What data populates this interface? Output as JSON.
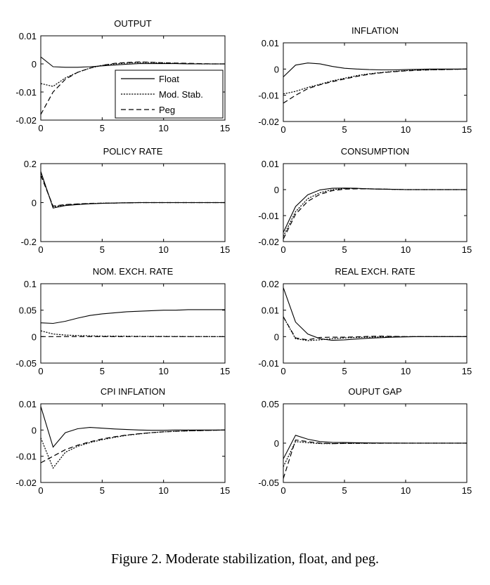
{
  "series_styles": [
    {
      "name": "Float",
      "dash": ""
    },
    {
      "name": "Mod. Stab.",
      "dash": "2.2,1.6"
    },
    {
      "name": "Peg",
      "dash": "7,4"
    }
  ],
  "chart_data": [
    {
      "type": "line",
      "title": "OUTPUT",
      "xlim": [
        0,
        15
      ],
      "ylim": [
        -0.02,
        0.01
      ],
      "x": [
        0,
        1,
        2,
        3,
        4,
        5,
        6,
        7,
        8,
        9,
        10,
        11,
        12,
        13,
        14,
        15
      ],
      "xticks": [
        0,
        5,
        10,
        15
      ],
      "xtick_labels": [
        "0",
        "5",
        "10",
        "15"
      ],
      "yticks": [
        -0.02,
        -0.01,
        0,
        0.01
      ],
      "ytick_labels": [
        "-0.02",
        "-0.01",
        "0",
        "0.01"
      ],
      "legend": [
        "Float",
        "Mod. Stab.",
        "Peg"
      ],
      "series": [
        {
          "name": "Float",
          "values": [
            0.0025,
            -0.001,
            -0.0012,
            -0.0012,
            -0.001,
            -0.0007,
            -0.0004,
            -0.0001,
            0.0001,
            0.0001,
            0.0001,
            0.0001,
            0.0,
            0.0,
            0.0,
            0.0
          ]
        },
        {
          "name": "Mod. Stab.",
          "values": [
            -0.007,
            -0.008,
            -0.005,
            -0.003,
            -0.0015,
            -0.0005,
            0.0,
            0.0003,
            0.0005,
            0.0005,
            0.0003,
            0.0002,
            0.0001,
            0.0,
            0.0,
            0.0
          ]
        },
        {
          "name": "Peg",
          "values": [
            -0.018,
            -0.01,
            -0.0055,
            -0.003,
            -0.0015,
            -0.0005,
            0.0002,
            0.0005,
            0.0007,
            0.0006,
            0.0004,
            0.0003,
            0.0002,
            0.0001,
            0.0,
            0.0
          ]
        }
      ]
    },
    {
      "type": "line",
      "title": "INFLATION",
      "xlim": [
        0,
        15
      ],
      "ylim": [
        -0.02,
        0.01
      ],
      "x": [
        0,
        1,
        2,
        3,
        4,
        5,
        6,
        7,
        8,
        9,
        10,
        11,
        12,
        13,
        14,
        15
      ],
      "xticks": [
        0,
        5,
        10,
        15
      ],
      "xtick_labels": [
        "0",
        "5",
        "10",
        "15"
      ],
      "yticks": [
        -0.02,
        -0.01,
        0,
        0.01
      ],
      "ytick_labels": [
        "-0.02",
        "-0.01",
        "0",
        "0.01"
      ],
      "series": [
        {
          "name": "Float",
          "values": [
            -0.003,
            0.0015,
            0.0023,
            0.002,
            0.001,
            0.0003,
            0.0,
            -0.0002,
            -0.0003,
            -0.0003,
            -0.0002,
            -0.0001,
            0.0,
            0.0,
            0.0,
            0.0
          ]
        },
        {
          "name": "Mod. Stab.",
          "values": [
            -0.0095,
            -0.0085,
            -0.007,
            -0.0058,
            -0.0045,
            -0.0035,
            -0.0025,
            -0.0018,
            -0.0013,
            -0.0009,
            -0.0006,
            -0.0004,
            -0.0003,
            -0.0002,
            -0.0001,
            0.0
          ]
        },
        {
          "name": "Peg",
          "values": [
            -0.013,
            -0.01,
            -0.0075,
            -0.006,
            -0.0048,
            -0.0038,
            -0.0028,
            -0.002,
            -0.0014,
            -0.001,
            -0.0007,
            -0.0005,
            -0.0003,
            -0.0002,
            -0.0001,
            0.0
          ]
        }
      ]
    },
    {
      "type": "line",
      "title": "POLICY RATE",
      "xlim": [
        0,
        15
      ],
      "ylim": [
        -0.2,
        0.2
      ],
      "x": [
        0,
        1,
        2,
        3,
        4,
        5,
        6,
        7,
        8,
        9,
        10,
        11,
        12,
        13,
        14,
        15
      ],
      "xticks": [
        0,
        5,
        10,
        15
      ],
      "xtick_labels": [
        "0",
        "5",
        "10",
        "15"
      ],
      "yticks": [
        -0.2,
        0,
        0.2
      ],
      "ytick_labels": [
        "-0.2",
        "0",
        "0.2"
      ],
      "series": [
        {
          "name": "Float",
          "values": [
            0.16,
            -0.028,
            -0.015,
            -0.01,
            -0.006,
            -0.004,
            -0.002,
            -0.001,
            0.0,
            0.0,
            0.0,
            0.0,
            0.0,
            0.0,
            0.0,
            0.0
          ]
        },
        {
          "name": "Mod. Stab.",
          "values": [
            0.15,
            -0.022,
            -0.012,
            -0.008,
            -0.005,
            -0.003,
            -0.002,
            -0.001,
            0.0,
            0.0,
            0.0,
            0.0,
            0.0,
            0.0,
            0.0,
            0.0
          ]
        },
        {
          "name": "Peg",
          "values": [
            0.14,
            -0.018,
            -0.01,
            -0.007,
            -0.004,
            -0.003,
            -0.002,
            -0.001,
            0.0,
            0.0,
            0.0,
            0.0,
            0.0,
            0.0,
            0.0,
            0.0
          ]
        }
      ]
    },
    {
      "type": "line",
      "title": "CONSUMPTION",
      "xlim": [
        0,
        15
      ],
      "ylim": [
        -0.02,
        0.01
      ],
      "x": [
        0,
        1,
        2,
        3,
        4,
        5,
        6,
        7,
        8,
        9,
        10,
        11,
        12,
        13,
        14,
        15
      ],
      "xticks": [
        0,
        5,
        10,
        15
      ],
      "xtick_labels": [
        "0",
        "5",
        "10",
        "15"
      ],
      "yticks": [
        -0.02,
        -0.01,
        0,
        0.01
      ],
      "ytick_labels": [
        "-0.02",
        "-0.01",
        "0",
        "0.01"
      ],
      "series": [
        {
          "name": "Float",
          "values": [
            -0.0165,
            -0.0065,
            -0.002,
            -0.0001,
            0.0005,
            0.0006,
            0.0005,
            0.0003,
            0.0002,
            0.0001,
            0.0,
            0.0,
            0.0,
            0.0,
            0.0,
            0.0
          ]
        },
        {
          "name": "Mod. Stab.",
          "values": [
            -0.018,
            -0.0085,
            -0.0035,
            -0.0012,
            0.0,
            0.0004,
            0.0004,
            0.0003,
            0.0002,
            0.0001,
            0.0,
            0.0,
            0.0,
            0.0,
            0.0,
            0.0
          ]
        },
        {
          "name": "Peg",
          "values": [
            -0.019,
            -0.0095,
            -0.0045,
            -0.0018,
            -0.0004,
            0.0002,
            0.0003,
            0.0003,
            0.0002,
            0.0001,
            0.0,
            0.0,
            0.0,
            0.0,
            0.0,
            0.0
          ]
        }
      ]
    },
    {
      "type": "line",
      "title": "NOM. EXCH. RATE",
      "xlim": [
        0,
        15
      ],
      "ylim": [
        -0.05,
        0.1
      ],
      "x": [
        0,
        1,
        2,
        3,
        4,
        5,
        6,
        7,
        8,
        9,
        10,
        11,
        12,
        13,
        14,
        15
      ],
      "xticks": [
        0,
        5,
        10,
        15
      ],
      "xtick_labels": [
        "0",
        "5",
        "10",
        "15"
      ],
      "yticks": [
        -0.05,
        0,
        0.05,
        0.1
      ],
      "ytick_labels": [
        "-0.05",
        "0",
        "0.05",
        "0.1"
      ],
      "series": [
        {
          "name": "Float",
          "values": [
            0.026,
            0.025,
            0.029,
            0.035,
            0.04,
            0.043,
            0.045,
            0.047,
            0.048,
            0.049,
            0.05,
            0.05,
            0.051,
            0.051,
            0.051,
            0.051
          ]
        },
        {
          "name": "Mod. Stab.",
          "values": [
            0.011,
            0.005,
            0.003,
            0.002,
            0.0015,
            0.001,
            0.001,
            0.0008,
            0.0006,
            0.0005,
            0.0004,
            0.0003,
            0.0002,
            0.0002,
            0.0001,
            0.0001
          ]
        },
        {
          "name": "Peg",
          "values": [
            0,
            0,
            0,
            0,
            0,
            0,
            0,
            0,
            0,
            0,
            0,
            0,
            0,
            0,
            0,
            0
          ]
        }
      ]
    },
    {
      "type": "line",
      "title": "REAL EXCH. RATE",
      "xlim": [
        0,
        15
      ],
      "ylim": [
        -0.01,
        0.02
      ],
      "x": [
        0,
        1,
        2,
        3,
        4,
        5,
        6,
        7,
        8,
        9,
        10,
        11,
        12,
        13,
        14,
        15
      ],
      "xticks": [
        0,
        5,
        10,
        15
      ],
      "xtick_labels": [
        "0",
        "5",
        "10",
        "15"
      ],
      "yticks": [
        -0.01,
        0,
        0.01,
        0.02
      ],
      "ytick_labels": [
        "-0.01",
        "0",
        "0.01",
        "0.02"
      ],
      "series": [
        {
          "name": "Float",
          "values": [
            0.0185,
            0.0055,
            0.001,
            -0.0008,
            -0.0014,
            -0.0012,
            -0.0009,
            -0.0006,
            -0.0004,
            -0.0002,
            -0.0001,
            0.0,
            0.0,
            0.0,
            0.0,
            0.0
          ]
        },
        {
          "name": "Mod. Stab.",
          "values": [
            0.0075,
            -0.0008,
            -0.0015,
            -0.0012,
            -0.0008,
            -0.0005,
            -0.0003,
            -0.0002,
            -0.0001,
            0.0,
            0.0,
            0.0,
            0.0,
            0.0,
            0.0,
            0.0
          ]
        },
        {
          "name": "Peg",
          "values": [
            0.0075,
            -0.0005,
            -0.0012,
            -0.0003,
            -0.0002,
            -0.0002,
            -0.0001,
            0.0001,
            0.0002,
            0.0001,
            0.0,
            0.0,
            0.0,
            0.0,
            0.0,
            0.0
          ]
        }
      ]
    },
    {
      "type": "line",
      "title": "CPI INFLATION",
      "xlim": [
        0,
        15
      ],
      "ylim": [
        -0.02,
        0.01
      ],
      "x": [
        0,
        1,
        2,
        3,
        4,
        5,
        6,
        7,
        8,
        9,
        10,
        11,
        12,
        13,
        14,
        15
      ],
      "xticks": [
        0,
        5,
        10,
        15
      ],
      "xtick_labels": [
        "0",
        "5",
        "10",
        "15"
      ],
      "yticks": [
        -0.02,
        -0.01,
        0,
        0.01
      ],
      "ytick_labels": [
        "-0.02",
        "-0.01",
        "0",
        "0.01"
      ],
      "series": [
        {
          "name": "Float",
          "values": [
            0.009,
            -0.0065,
            -0.001,
            0.0005,
            0.001,
            0.0007,
            0.0004,
            0.0002,
            0.0,
            -0.0001,
            -0.0001,
            0.0,
            0.0,
            0.0,
            0.0,
            0.0
          ]
        },
        {
          "name": "Mod. Stab.",
          "values": [
            -0.003,
            -0.0145,
            -0.0085,
            -0.0062,
            -0.0048,
            -0.0037,
            -0.0028,
            -0.002,
            -0.0015,
            -0.001,
            -0.0007,
            -0.0005,
            -0.0003,
            -0.0002,
            -0.0001,
            0.0
          ]
        },
        {
          "name": "Peg",
          "values": [
            -0.0125,
            -0.01,
            -0.0075,
            -0.0058,
            -0.0045,
            -0.0034,
            -0.0026,
            -0.0019,
            -0.0014,
            -0.001,
            -0.0007,
            -0.0005,
            -0.0003,
            -0.0002,
            -0.0001,
            0.0
          ]
        }
      ]
    },
    {
      "type": "line",
      "title": "OUPUT GAP",
      "xlim": [
        0,
        15
      ],
      "ylim": [
        -0.05,
        0.05
      ],
      "x": [
        0,
        1,
        2,
        3,
        4,
        5,
        6,
        7,
        8,
        9,
        10,
        11,
        12,
        13,
        14,
        15
      ],
      "xticks": [
        0,
        5,
        10,
        15
      ],
      "xtick_labels": [
        "0",
        "5",
        "10",
        "15"
      ],
      "yticks": [
        -0.05,
        0,
        0.05
      ],
      "ytick_labels": [
        "-0.05",
        "0",
        "0.05"
      ],
      "series": [
        {
          "name": "Float",
          "values": [
            -0.02,
            0.01,
            0.005,
            0.002,
            0.001,
            0.0008,
            0.0005,
            0.0003,
            0.0002,
            0.0001,
            0.0,
            0.0,
            0.0,
            0.0,
            0.0,
            0.0
          ]
        },
        {
          "name": "Mod. Stab.",
          "values": [
            -0.03,
            0.002,
            0.0005,
            -0.0005,
            -0.0005,
            -0.0003,
            -0.0002,
            -0.0001,
            0.0,
            0.0,
            0.0,
            0.0,
            0.0,
            0.0,
            0.0,
            0.0
          ]
        },
        {
          "name": "Peg",
          "values": [
            -0.045,
            0.004,
            0.002,
            0.0,
            -0.0005,
            -0.0004,
            -0.0003,
            -0.0002,
            -0.0001,
            0.0,
            0.0,
            0.0,
            0.0,
            0.0,
            0.0,
            0.0
          ]
        }
      ]
    }
  ],
  "caption": "Figure 2.  Moderate stabilization, float, and peg."
}
